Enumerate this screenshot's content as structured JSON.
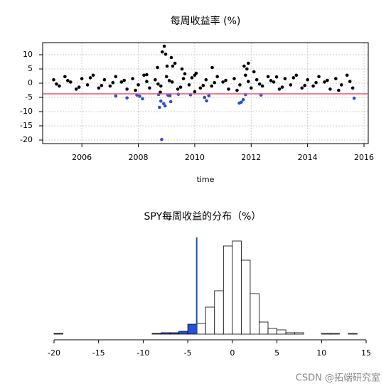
{
  "chart_data": [
    {
      "type": "scatter",
      "title": "每周收益率 (%)",
      "x_label": "time",
      "x": [
        2005.0,
        2005.2,
        2005.4,
        2005.6,
        2005.8,
        2006.0,
        2006.2,
        2006.4,
        2006.6,
        2006.8,
        2007.0,
        2007.2,
        2007.4,
        2007.6,
        2007.8,
        2008.0,
        2008.2,
        2008.4,
        2008.6,
        2008.8,
        2009.0,
        2009.2,
        2009.4,
        2009.6,
        2009.8,
        2010.0,
        2010.2,
        2010.4,
        2010.6,
        2010.8,
        2011.0,
        2011.2,
        2011.4,
        2011.6,
        2011.8,
        2012.0,
        2012.2,
        2012.4,
        2012.6,
        2012.8,
        2013.0,
        2013.2,
        2013.4,
        2013.6,
        2013.8,
        2014.0,
        2014.2,
        2014.4,
        2014.6,
        2014.8,
        2015.0,
        2015.2,
        2015.4,
        2015.6,
        2005.1,
        2005.5,
        2005.9,
        2006.3,
        2006.7,
        2007.1,
        2007.5,
        2007.9,
        2008.3,
        2008.7,
        2009.1,
        2009.5,
        2009.9,
        2010.3,
        2010.7,
        2011.1,
        2011.5,
        2011.9,
        2012.3,
        2012.7,
        2013.1,
        2013.5,
        2013.9,
        2014.3,
        2014.7,
        2015.1,
        2015.5,
        2007.2,
        2007.6,
        2007.95,
        2008.05,
        2008.15,
        2008.72,
        2008.75,
        2008.8,
        2008.83,
        2008.9,
        2008.95,
        2009.05,
        2009.12,
        2009.15,
        2009.42,
        2009.85,
        2010.35,
        2010.42,
        2010.5,
        2011.58,
        2011.65,
        2011.72,
        2011.8,
        2012.35,
        2015.65,
        2008.85,
        2008.92,
        2008.97,
        2009.02,
        2009.17,
        2009.22,
        2009.3,
        2009.55,
        2010.62,
        2011.75,
        2011.9,
        2011.85,
        2012.1,
        2010.05,
        2009.65,
        2008.3,
        2008.68,
        2008.78,
        2010.0,
        2012.9
      ],
      "y": [
        1.2,
        -1.0,
        2.3,
        0.4,
        -2.1,
        1.6,
        -0.6,
        2.8,
        -1.7,
        1.2,
        -1.0,
        2.3,
        0.4,
        -2.1,
        1.6,
        -0.6,
        2.8,
        -1.7,
        1.2,
        -1.0,
        2.3,
        0.4,
        -2.1,
        1.6,
        -0.6,
        2.8,
        -1.7,
        1.2,
        -1.0,
        2.3,
        0.4,
        -2.1,
        1.6,
        -0.6,
        2.8,
        -1.7,
        1.2,
        -1.0,
        2.3,
        0.4,
        -2.1,
        1.6,
        -0.6,
        2.8,
        -1.7,
        1.2,
        -1.0,
        2.3,
        0.4,
        -2.1,
        1.6,
        -0.6,
        2.8,
        -1.7,
        -0.3,
        0.9,
        -1.4,
        1.9,
        -0.8,
        0.2,
        1.0,
        -2.5,
        0.6,
        -0.3,
        0.9,
        -1.4,
        1.9,
        -0.8,
        0.2,
        1.0,
        -2.5,
        0.6,
        -0.3,
        0.9,
        -1.4,
        1.9,
        -0.8,
        0.2,
        1.0,
        -2.5,
        0.6,
        -4.5,
        -5.2,
        -4.2,
        -4.6,
        -5.5,
        -4.0,
        -8.5,
        -6.3,
        -19.8,
        -7.2,
        -8.0,
        -4.2,
        -4.4,
        -6.5,
        -3.9,
        -4.1,
        -5.0,
        -6.2,
        -4.4,
        -7.0,
        -6.7,
        -5.8,
        -4.0,
        -4.2,
        -5.3,
        11.0,
        13.0,
        10.2,
        6.0,
        9.0,
        6.0,
        7.0,
        5.0,
        5.5,
        6.0,
        7.0,
        5.0,
        4.0,
        3.5,
        3.3,
        3.0,
        5.5,
        -3.2,
        -3.0,
        2.2
      ],
      "color": "#000000",
      "highlight_color": "#2a4fd6",
      "threshold": -3.75,
      "threshold_color": "#f2506a",
      "xlim": [
        2004.61,
        2016.15
      ],
      "ylim": [
        -21.25,
        14.25
      ],
      "xticks": [
        2006,
        2008,
        2010,
        2012,
        2014,
        2016
      ],
      "yticks": [
        -20,
        -15,
        -10,
        -5,
        0,
        5,
        10
      ],
      "grid": true
    },
    {
      "type": "histogram",
      "title": "SPY每周收益的分布（%）",
      "bins": [
        -20,
        -19,
        -18,
        -17,
        -16,
        -15,
        -14,
        -13,
        -12,
        -11,
        -10,
        -9,
        -8,
        -7,
        -6,
        -5,
        -4,
        -3,
        -2,
        -1,
        0,
        1,
        2,
        3,
        4,
        5,
        6,
        7,
        8,
        9,
        10,
        11,
        12,
        13,
        14
      ],
      "counts": [
        1,
        0,
        0,
        0,
        0,
        0,
        0,
        0,
        0,
        0,
        0,
        1,
        2,
        2,
        4,
        14,
        15,
        38,
        61,
        124,
        131,
        104,
        57,
        17,
        8,
        6,
        2,
        2,
        0,
        0,
        1,
        1,
        0,
        1
      ],
      "color": "#ffffff",
      "highlight_color": "#2a4fd6",
      "threshold": -4,
      "threshold_color": "#1f4fa8",
      "xlim": [
        -20,
        15
      ],
      "ylim": [
        0,
        140
      ],
      "xticks": [
        -20,
        -15,
        -10,
        -5,
        0,
        5,
        10,
        15
      ]
    }
  ],
  "watermark": "CSDN @拓端研究室"
}
